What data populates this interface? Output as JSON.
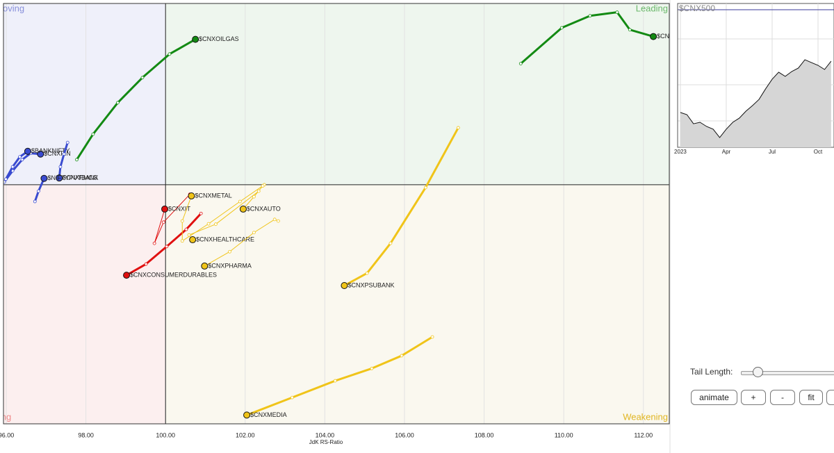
{
  "chart_data": [
    {
      "type": "rrg",
      "x_label": "JdK RS-Ratio",
      "xlim": [
        95.93,
        112.65
      ],
      "ylim": [
        94.0,
        104.55
      ],
      "center": [
        100,
        100
      ],
      "xticks": [
        {
          "value": 96,
          "label": "96.00"
        },
        {
          "value": 98,
          "label": "98.00"
        },
        {
          "value": 100,
          "label": "100.00"
        },
        {
          "value": 102,
          "label": "102.00"
        },
        {
          "value": 104,
          "label": "104.00"
        },
        {
          "value": 106,
          "label": "106.00"
        },
        {
          "value": 108,
          "label": "108.00"
        },
        {
          "value": 110,
          "label": "110.00"
        },
        {
          "value": 112,
          "label": "112.00"
        }
      ],
      "grid": true,
      "quadrants": {
        "improving": "Improving",
        "leading": "Leading",
        "lagging": "Lagging",
        "weakening": "Weakening"
      },
      "series": [
        {
          "name": "$CNXREALTY",
          "color": "#138a13",
          "width": 3,
          "x": [
            108.92,
            109.95,
            110.66,
            111.34,
            111.66,
            112.25
          ],
          "y": [
            103.04,
            103.94,
            104.24,
            104.33,
            103.89,
            103.72
          ]
        },
        {
          "name": "$CNXOILGAS",
          "color": "#138a13",
          "width": 3,
          "x": [
            97.77,
            98.18,
            98.8,
            99.42,
            100.1,
            100.75
          ],
          "y": [
            100.63,
            101.27,
            102.06,
            102.69,
            103.28,
            103.65
          ]
        },
        {
          "name": "$CNXFIN",
          "color": "#3a4bd0",
          "width": 3,
          "x": [
            95.95,
            96.16,
            96.4,
            96.61,
            96.86
          ],
          "y": [
            100.07,
            100.35,
            100.63,
            100.79,
            100.77
          ]
        },
        {
          "name": "$BANKNIFTY",
          "color": "#3a4bd0",
          "width": 3,
          "x": [
            95.99,
            96.16,
            96.34,
            96.54
          ],
          "y": [
            100.14,
            100.45,
            100.7,
            100.84
          ]
        },
        {
          "name": "$CNXFMCG",
          "color": "#3a4bd0",
          "width": 3,
          "x": [
            97.54,
            97.45,
            97.36,
            97.33
          ],
          "y": [
            101.06,
            100.77,
            100.45,
            100.17
          ]
        },
        {
          "name": "$NIFTYPVTBANK",
          "color": "#3a4bd0",
          "width": 3,
          "x": [
            96.72,
            96.81,
            96.95
          ],
          "y": [
            99.58,
            99.84,
            100.16
          ]
        },
        {
          "name": "$CNXIT",
          "color": "#e01010",
          "width": 1,
          "x": [
            100.61,
            99.95,
            99.72,
            99.98
          ],
          "y": [
            99.76,
            99.06,
            98.53,
            99.39
          ]
        },
        {
          "name": "$CNXCONSUMERDURABLES",
          "color": "#e01010",
          "width": 3,
          "x": [
            100.89,
            100.52,
            100.03,
            99.51,
            99.02
          ],
          "y": [
            99.28,
            98.88,
            98.45,
            98.01,
            97.73
          ]
        },
        {
          "name": "$CNXMETAL",
          "color": "#f0c419",
          "width": 1,
          "x": [
            102.48,
            101.87,
            101.08,
            100.42,
            100.42,
            100.65
          ],
          "y": [
            100.0,
            99.58,
            99.02,
            98.59,
            99.09,
            99.72
          ]
        },
        {
          "name": "$CNXAUTO",
          "color": "#f0c419",
          "width": 1,
          "x": [
            102.44,
            102.22,
            101.95
          ],
          "y": [
            99.97,
            99.7,
            99.39
          ]
        },
        {
          "name": "$CNXHEALTHCARE",
          "color": "#f0c419",
          "width": 1,
          "x": [
            102.34,
            101.26,
            100.59,
            100.68
          ],
          "y": [
            99.84,
            99.01,
            98.74,
            98.62
          ]
        },
        {
          "name": "$CNXPHARMA",
          "color": "#f0c419",
          "width": 1,
          "x": [
            102.83,
            102.74,
            102.22,
            101.61,
            100.98
          ],
          "y": [
            99.09,
            99.13,
            98.8,
            98.32,
            97.96
          ]
        },
        {
          "name": "$CNXPSUBANK",
          "color": "#f0c419",
          "width": 3,
          "x": [
            107.35,
            106.53,
            105.65,
            105.06,
            104.49
          ],
          "y": [
            101.43,
            99.93,
            98.53,
            97.78,
            97.47
          ]
        },
        {
          "name": "$CNXMEDIA",
          "color": "#f0c419",
          "width": 3,
          "x": [
            106.7,
            105.93,
            105.18,
            104.26,
            103.18,
            102.04
          ],
          "y": [
            96.18,
            95.71,
            95.39,
            95.08,
            94.66,
            94.22
          ]
        }
      ]
    },
    {
      "type": "line",
      "title": "$CNX500",
      "color": "#111111",
      "xlim": [
        -0.42,
        23.44
      ],
      "ylim": [
        0,
        100
      ],
      "xticks": [
        {
          "value": 0,
          "label": "2023"
        },
        {
          "value": 7,
          "label": "Apr"
        },
        {
          "value": 14,
          "label": "Jul"
        },
        {
          "value": 21,
          "label": "Oct"
        }
      ],
      "values": [
        24.2,
        22.7,
        16.4,
        17.4,
        14.5,
        12.6,
        6.8,
        12.6,
        17.4,
        20.3,
        25.1,
        29.0,
        33.3,
        40.6,
        47.3,
        52.2,
        49.3,
        52.7,
        55.1,
        60.9,
        58.9,
        57.0,
        54.1,
        59.9
      ]
    }
  ],
  "controls": {
    "tail_length_label": "Tail Length:",
    "buttons": [
      "animate",
      "+",
      "-",
      "fit"
    ]
  }
}
